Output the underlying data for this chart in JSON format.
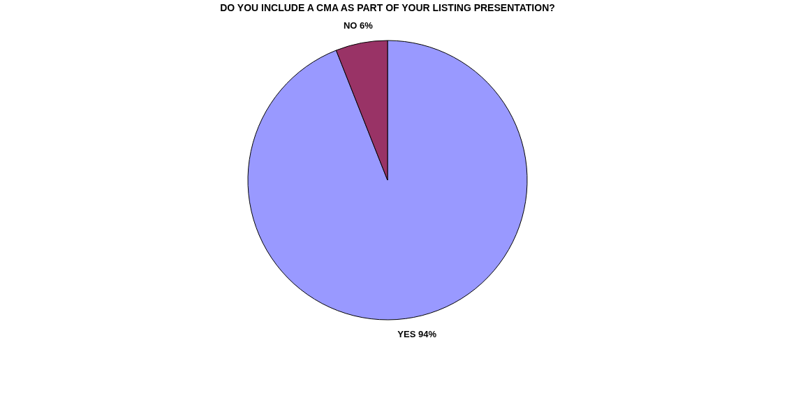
{
  "chart_data": {
    "type": "pie",
    "title": "DO YOU INCLUDE A CMA AS PART OF YOUR LISTING PRESENTATION?",
    "categories": [
      "YES",
      "NO"
    ],
    "values": [
      94,
      6
    ],
    "colors": [
      "#9999ff",
      "#993366"
    ],
    "value_labels": [
      "94%",
      "6%"
    ]
  }
}
